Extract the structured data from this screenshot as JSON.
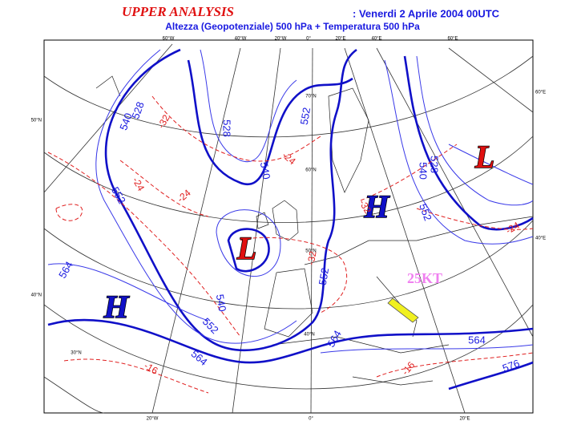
{
  "header": {
    "title": "UPPER ANALYSIS",
    "date": ": Venerdi 2 Aprile 2004 00UTC",
    "subtitle": "Altezza (Geopotenziale) 500 hPa + Temperatura 500 hPa"
  },
  "graticule": {
    "top": [
      "60°W",
      "40°W",
      "20°W",
      "0°",
      "20°E",
      "40°E",
      "60°E"
    ],
    "left": [
      "50°N",
      "40°N"
    ],
    "right": [
      "60°E",
      "40°E"
    ],
    "bottom": [
      "20°W",
      "0°",
      "20°E"
    ],
    "inner": [
      "70°N",
      "60°N",
      "50°N",
      "40°N",
      "30°N"
    ]
  },
  "systems": [
    "L",
    "H",
    "L",
    "H"
  ],
  "wind": "25KT",
  "height_labels": [
    "528",
    "540",
    "528",
    "540",
    "552",
    "552",
    "528",
    "540",
    "552",
    "552",
    "540",
    "552",
    "564",
    "564",
    "564",
    "564",
    "576"
  ],
  "temperature_labels": [
    "-32",
    "-24",
    "-24",
    "-32",
    "-24",
    "-32",
    "-16",
    "-16",
    "-24"
  ]
}
